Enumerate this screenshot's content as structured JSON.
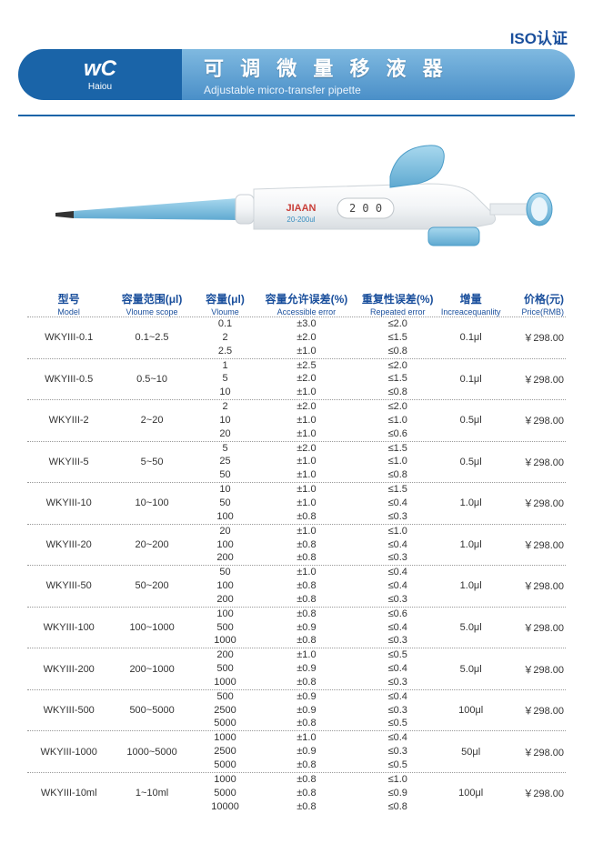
{
  "colors": {
    "brand_blue": "#1a64a8",
    "header_gradient_top": "#7fb9e0",
    "header_gradient_bottom": "#4a8fc8",
    "text_blue": "#1a4f9c",
    "pipette_body": "#f5f6f7",
    "pipette_body_shadow": "#d8dde1",
    "pipette_blue": "#7fc2e0",
    "pipette_blue_dark": "#4a9cc8",
    "pipette_tip": "#333333"
  },
  "iso": "ISO认证",
  "logo_glyph": "wC",
  "brand": "Haiou",
  "title_cn": "可 调 微 量 移 液 器",
  "title_en": "Adjustable micro-transfer pipette",
  "pipette_label_brand": "JIAAN",
  "pipette_label_range": "20-200ul",
  "pipette_display": "2 0 0",
  "headers": {
    "model_cn": "型号",
    "model_en": "Model",
    "scope_cn": "容量范围(μl)",
    "scope_en": "Vloume scope",
    "vol_cn": "容量(μl)",
    "vol_en": "Vloume",
    "acc_cn": "容量允许误差(%)",
    "acc_en": "Accessible error",
    "rep_cn": "重复性误差(%)",
    "rep_en": "Repeated error",
    "inc_cn": "增量",
    "inc_en": "Increacequanlity",
    "price_cn": "价格(元)",
    "price_en": "Price(RMB)"
  },
  "rows": [
    {
      "model": "WKYIII-0.1",
      "scope": "0.1~2.5",
      "vol": [
        "0.1",
        "2",
        "2.5"
      ],
      "acc": [
        "±3.0",
        "±2.0",
        "±1.0"
      ],
      "rep": [
        "≤2.0",
        "≤1.5",
        "≤0.8"
      ],
      "inc": "0.1μl",
      "price": "￥298.00"
    },
    {
      "model": "WKYIII-0.5",
      "scope": "0.5~10",
      "vol": [
        "1",
        "5",
        "10"
      ],
      "acc": [
        "±2.5",
        "±2.0",
        "±1.0"
      ],
      "rep": [
        "≤2.0",
        "≤1.5",
        "≤0.8"
      ],
      "inc": "0.1μl",
      "price": "￥298.00"
    },
    {
      "model": "WKYIII-2",
      "scope": "2~20",
      "vol": [
        "2",
        "10",
        "20"
      ],
      "acc": [
        "±2.0",
        "±1.0",
        "±1.0"
      ],
      "rep": [
        "≤2.0",
        "≤1.0",
        "≤0.6"
      ],
      "inc": "0.5μl",
      "price": "￥298.00"
    },
    {
      "model": "WKYIII-5",
      "scope": "5~50",
      "vol": [
        "5",
        "25",
        "50"
      ],
      "acc": [
        "±2.0",
        "±1.0",
        "±1.0"
      ],
      "rep": [
        "≤1.5",
        "≤1.0",
        "≤0.8"
      ],
      "inc": "0.5μl",
      "price": "￥298.00"
    },
    {
      "model": "WKYIII-10",
      "scope": "10~100",
      "vol": [
        "10",
        "50",
        "100"
      ],
      "acc": [
        "±1.0",
        "±1.0",
        "±0.8"
      ],
      "rep": [
        "≤1.5",
        "≤0.4",
        "≤0.3"
      ],
      "inc": "1.0μl",
      "price": "￥298.00"
    },
    {
      "model": "WKYIII-20",
      "scope": "20~200",
      "vol": [
        "20",
        "100",
        "200"
      ],
      "acc": [
        "±1.0",
        "±0.8",
        "±0.8"
      ],
      "rep": [
        "≤1.0",
        "≤0.4",
        "≤0.3"
      ],
      "inc": "1.0μl",
      "price": "￥298.00"
    },
    {
      "model": "WKYIII-50",
      "scope": "50~200",
      "vol": [
        "50",
        "100",
        "200"
      ],
      "acc": [
        "±1.0",
        "±0.8",
        "±0.8"
      ],
      "rep": [
        "≤0.4",
        "≤0.4",
        "≤0.3"
      ],
      "inc": "1.0μl",
      "price": "￥298.00"
    },
    {
      "model": "WKYIII-100",
      "scope": "100~1000",
      "vol": [
        "100",
        "500",
        "1000"
      ],
      "acc": [
        "±0.8",
        "±0.9",
        "±0.8"
      ],
      "rep": [
        "≤0.6",
        "≤0.4",
        "≤0.3"
      ],
      "inc": "5.0μl",
      "price": "￥298.00"
    },
    {
      "model": "WKYIII-200",
      "scope": "200~1000",
      "vol": [
        "200",
        "500",
        "1000"
      ],
      "acc": [
        "±1.0",
        "±0.9",
        "±0.8"
      ],
      "rep": [
        "≤0.5",
        "≤0.4",
        "≤0.3"
      ],
      "inc": "5.0μl",
      "price": "￥298.00"
    },
    {
      "model": "WKYIII-500",
      "scope": "500~5000",
      "vol": [
        "500",
        "2500",
        "5000"
      ],
      "acc": [
        "±0.9",
        "±0.9",
        "±0.8"
      ],
      "rep": [
        "≤0.4",
        "≤0.3",
        "≤0.5"
      ],
      "inc": "100μl",
      "price": "￥298.00"
    },
    {
      "model": "WKYIII-1000",
      "scope": "1000~5000",
      "vol": [
        "1000",
        "2500",
        "5000"
      ],
      "acc": [
        "±1.0",
        "±0.9",
        "±0.8"
      ],
      "rep": [
        "≤0.4",
        "≤0.3",
        "≤0.5"
      ],
      "inc": "50μl",
      "price": "￥298.00"
    },
    {
      "model": "WKYIII-10ml",
      "scope": "1~10ml",
      "vol": [
        "1000",
        "5000",
        "10000"
      ],
      "acc": [
        "±0.8",
        "±0.8",
        "±0.8"
      ],
      "rep": [
        "≤1.0",
        "≤0.9",
        "≤0.8"
      ],
      "inc": "100μl",
      "price": "￥298.00"
    }
  ]
}
